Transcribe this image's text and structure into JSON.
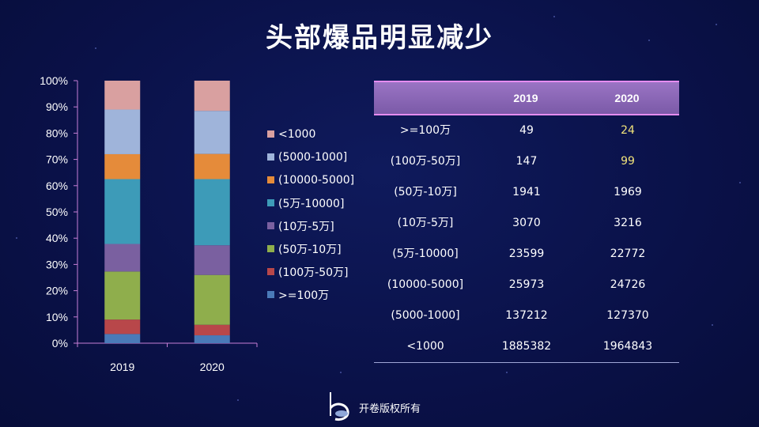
{
  "title": "头部爆品明显减少",
  "chart_data": {
    "type": "bar",
    "stacked": true,
    "percent": true,
    "categories": [
      "2019",
      "2020"
    ],
    "ylim": [
      0,
      100
    ],
    "yticks": [
      "0%",
      "10%",
      "20%",
      "30%",
      "40%",
      "50%",
      "60%",
      "70%",
      "80%",
      "90%",
      "100%"
    ],
    "series": [
      {
        "name": ">=100万",
        "color": "#4a7ab8",
        "values": [
          3.5,
          3.0
        ]
      },
      {
        "name": "(100万-50万]",
        "color": "#b8474a",
        "values": [
          5.5,
          4.0
        ]
      },
      {
        "name": "(50万-10万]",
        "color": "#8fae4c",
        "values": [
          18.3,
          19.0
        ]
      },
      {
        "name": "(10万-5万]",
        "color": "#7a60a0",
        "values": [
          10.5,
          11.3
        ]
      },
      {
        "name": "(5万-10000]",
        "color": "#3d9bb8",
        "values": [
          24.7,
          25.2
        ]
      },
      {
        "name": "(10000-5000]",
        "color": "#e58b3a",
        "values": [
          9.5,
          9.6
        ]
      },
      {
        "name": "(5000-1000]",
        "color": "#9fb4da",
        "values": [
          17.0,
          16.4
        ]
      },
      {
        "name": "<1000",
        "color": "#d9a0a0",
        "values": [
          11.0,
          11.5
        ]
      }
    ],
    "legend_position": "right"
  },
  "table": {
    "headers": [
      "",
      "2019",
      "2020"
    ],
    "rows": [
      {
        "label": ">=100万",
        "v2019": "49",
        "v2020": "24",
        "hl": true
      },
      {
        "label": "(100万-50万]",
        "v2019": "147",
        "v2020": "99",
        "hl": true
      },
      {
        "label": "(50万-10万]",
        "v2019": "1941",
        "v2020": "1969",
        "hl": false
      },
      {
        "label": "(10万-5万]",
        "v2019": "3070",
        "v2020": "3216",
        "hl": false
      },
      {
        "label": "(5万-10000]",
        "v2019": "23599",
        "v2020": "22772",
        "hl": false
      },
      {
        "label": "(10000-5000]",
        "v2019": "25973",
        "v2020": "24726",
        "hl": false
      },
      {
        "label": "(5000-1000]",
        "v2019": "137212",
        "v2020": "127370",
        "hl": false
      },
      {
        "label": "<1000",
        "v2019": "1885382",
        "v2020": "1964843",
        "hl": false
      }
    ],
    "highlight_color": "#f1e27a"
  },
  "footer": {
    "text": "开卷版权所有",
    "logo_icon": "kaijuan-logo-icon"
  }
}
